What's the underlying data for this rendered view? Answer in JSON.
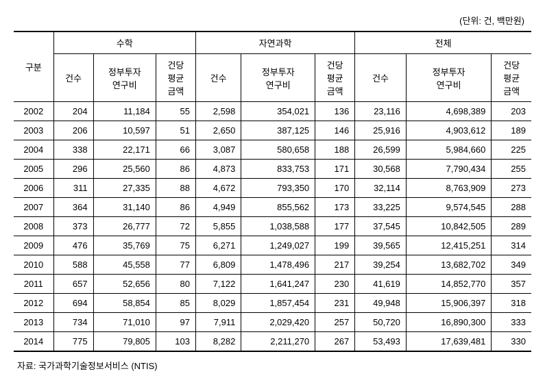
{
  "unit_label": "(단위: 건, 백만원)",
  "header": {
    "rowlabel": "구분",
    "groups": [
      "수학",
      "자연과학",
      "전체"
    ],
    "sub": {
      "count": "건수",
      "amount": "정부투자\n연구비",
      "avg": "건당\n평균\n금액"
    }
  },
  "rows": [
    {
      "year": "2002",
      "a_cnt": "204",
      "a_amt": "11,184",
      "a_avg": "55",
      "b_cnt": "2,598",
      "b_amt": "354,021",
      "b_avg": "136",
      "c_cnt": "23,116",
      "c_amt": "4,698,389",
      "c_avg": "203"
    },
    {
      "year": "2003",
      "a_cnt": "206",
      "a_amt": "10,597",
      "a_avg": "51",
      "b_cnt": "2,650",
      "b_amt": "387,125",
      "b_avg": "146",
      "c_cnt": "25,916",
      "c_amt": "4,903,612",
      "c_avg": "189"
    },
    {
      "year": "2004",
      "a_cnt": "338",
      "a_amt": "22,171",
      "a_avg": "66",
      "b_cnt": "3,087",
      "b_amt": "580,658",
      "b_avg": "188",
      "c_cnt": "26,599",
      "c_amt": "5,984,660",
      "c_avg": "225"
    },
    {
      "year": "2005",
      "a_cnt": "296",
      "a_amt": "25,560",
      "a_avg": "86",
      "b_cnt": "4,873",
      "b_amt": "833,753",
      "b_avg": "171",
      "c_cnt": "30,568",
      "c_amt": "7,790,434",
      "c_avg": "255"
    },
    {
      "year": "2006",
      "a_cnt": "311",
      "a_amt": "27,335",
      "a_avg": "88",
      "b_cnt": "4,672",
      "b_amt": "793,350",
      "b_avg": "170",
      "c_cnt": "32,114",
      "c_amt": "8,763,909",
      "c_avg": "273"
    },
    {
      "year": "2007",
      "a_cnt": "364",
      "a_amt": "31,140",
      "a_avg": "86",
      "b_cnt": "4,949",
      "b_amt": "855,562",
      "b_avg": "173",
      "c_cnt": "33,225",
      "c_amt": "9,574,545",
      "c_avg": "288"
    },
    {
      "year": "2008",
      "a_cnt": "373",
      "a_amt": "26,777",
      "a_avg": "72",
      "b_cnt": "5,855",
      "b_amt": "1,038,588",
      "b_avg": "177",
      "c_cnt": "37,545",
      "c_amt": "10,842,505",
      "c_avg": "289"
    },
    {
      "year": "2009",
      "a_cnt": "476",
      "a_amt": "35,769",
      "a_avg": "75",
      "b_cnt": "6,271",
      "b_amt": "1,249,027",
      "b_avg": "199",
      "c_cnt": "39,565",
      "c_amt": "12,415,251",
      "c_avg": "314"
    },
    {
      "year": "2010",
      "a_cnt": "588",
      "a_amt": "45,558",
      "a_avg": "77",
      "b_cnt": "6,809",
      "b_amt": "1,478,496",
      "b_avg": "217",
      "c_cnt": "39,254",
      "c_amt": "13,682,702",
      "c_avg": "349"
    },
    {
      "year": "2011",
      "a_cnt": "657",
      "a_amt": "52,656",
      "a_avg": "80",
      "b_cnt": "7,122",
      "b_amt": "1,641,247",
      "b_avg": "230",
      "c_cnt": "41,619",
      "c_amt": "14,852,770",
      "c_avg": "357"
    },
    {
      "year": "2012",
      "a_cnt": "694",
      "a_amt": "58,854",
      "a_avg": "85",
      "b_cnt": "8,029",
      "b_amt": "1,857,454",
      "b_avg": "231",
      "c_cnt": "49,948",
      "c_amt": "15,906,397",
      "c_avg": "318"
    },
    {
      "year": "2013",
      "a_cnt": "734",
      "a_amt": "71,010",
      "a_avg": "97",
      "b_cnt": "7,911",
      "b_amt": "2,029,420",
      "b_avg": "257",
      "c_cnt": "50,720",
      "c_amt": "16,890,300",
      "c_avg": "333"
    },
    {
      "year": "2014",
      "a_cnt": "775",
      "a_amt": "79,805",
      "a_avg": "103",
      "b_cnt": "8,282",
      "b_amt": "2,211,270",
      "b_avg": "267",
      "c_cnt": "53,493",
      "c_amt": "17,639,481",
      "c_avg": "330"
    }
  ],
  "source": "자료: 국가과학기술정보서비스 (NTIS)"
}
